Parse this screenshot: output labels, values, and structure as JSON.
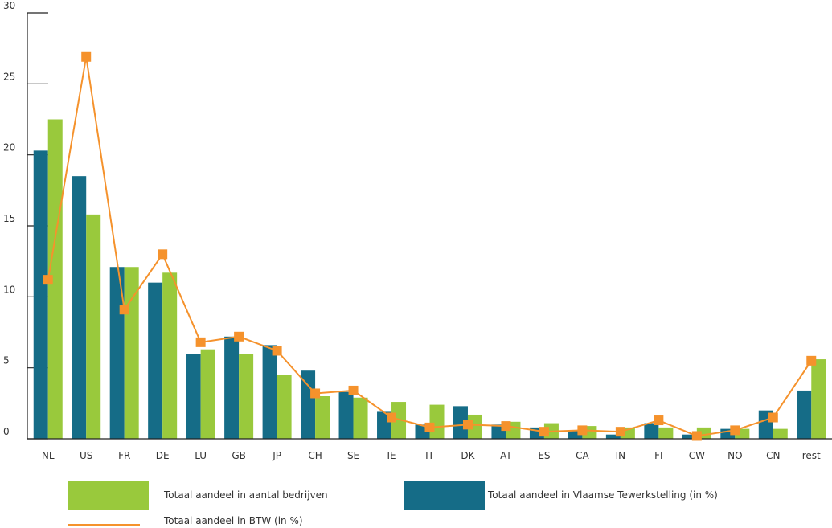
{
  "chart_data": {
    "type": "bar",
    "ylim": [
      0,
      30
    ],
    "yticks": [
      "0",
      "5",
      "10",
      "15",
      "20",
      "25",
      "30"
    ],
    "grid": false,
    "legend_position": "bottom",
    "categories": [
      "NL",
      "US",
      "FR",
      "DE",
      "LU",
      "GB",
      "JP",
      "CH",
      "SE",
      "IE",
      "IT",
      "DK",
      "AT",
      "ES",
      "CA",
      "IN",
      "FI",
      "CW",
      "NO",
      "CN",
      "rest"
    ],
    "series": [
      {
        "name": "Totaal aandeel in Vlaamse Tewerkstelling (in %)",
        "kind": "bar",
        "color": "#156c87",
        "values": [
          20.3,
          18.5,
          12.1,
          11.0,
          6.0,
          7.2,
          6.6,
          4.8,
          3.3,
          1.9,
          1.0,
          2.3,
          1.0,
          0.8,
          0.6,
          0.3,
          1.1,
          0.3,
          0.7,
          2.0,
          3.4
        ]
      },
      {
        "name": "Totaal aandeel in aantal bedrijven",
        "kind": "bar",
        "color": "#99c93c",
        "values": [
          22.5,
          15.8,
          12.1,
          11.7,
          6.3,
          6.0,
          4.5,
          3.0,
          2.9,
          2.6,
          2.4,
          1.7,
          1.2,
          1.1,
          0.9,
          0.8,
          0.8,
          0.8,
          0.7,
          0.7,
          5.6
        ]
      },
      {
        "name": "Totaal aandeel in BTW (in %)",
        "kind": "line",
        "color": "#f5922c",
        "values": [
          11.2,
          26.9,
          9.1,
          13.0,
          6.8,
          7.2,
          6.2,
          3.2,
          3.4,
          1.5,
          0.8,
          1.0,
          0.9,
          0.5,
          0.6,
          0.5,
          1.3,
          0.2,
          0.6,
          1.5,
          5.5
        ]
      }
    ]
  }
}
